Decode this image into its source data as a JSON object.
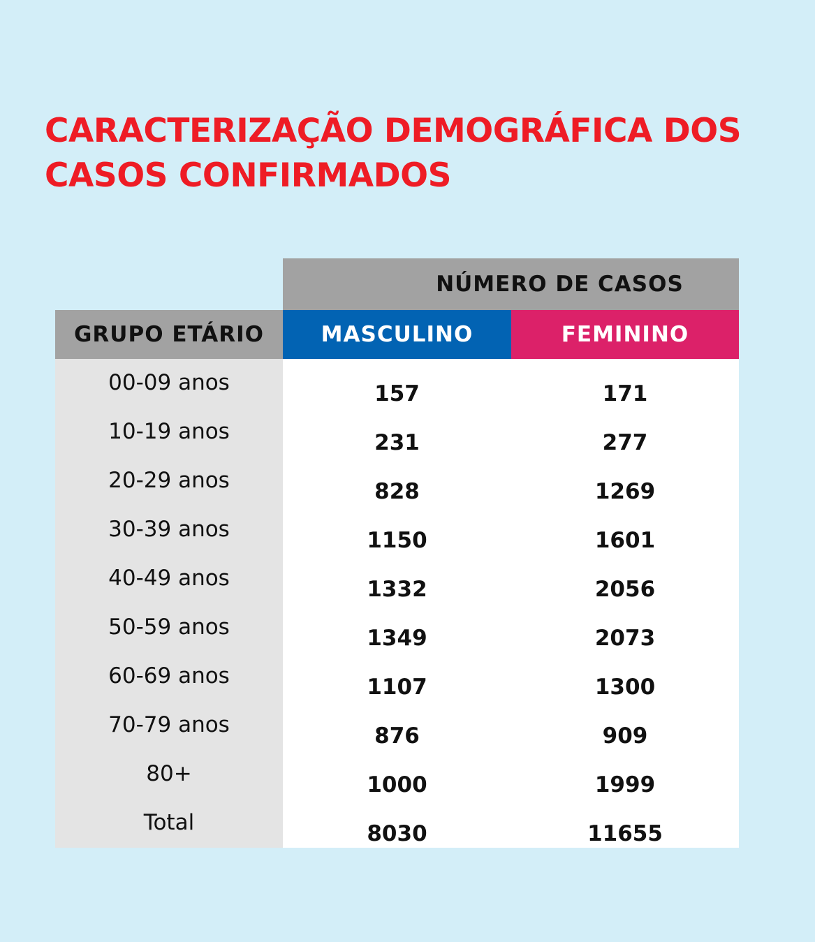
{
  "title": "CARACTERIZAÇÃO DEMOGRÁFICA DOS CASOS CONFIRMADOS",
  "header": {
    "numero_de_casos": "NÚMERO DE CASOS",
    "grupo_etario": "GRUPO ETÁRIO",
    "masculino": "MASCULINO",
    "feminino": "FEMININO"
  },
  "colors": {
    "background": "#d3eef8",
    "title": "#ee1c25",
    "header_gray": "#a2a2a2",
    "masculino": "#0263b3",
    "feminino": "#dc2169",
    "group_column": "#e4e4e4"
  },
  "chart_data": {
    "type": "table",
    "title": "CARACTERIZAÇÃO DEMOGRÁFICA DOS CASOS CONFIRMADOS",
    "columns": [
      "GRUPO ETÁRIO",
      "MASCULINO",
      "FEMININO"
    ],
    "rows": [
      {
        "group": "00-09 anos",
        "masculino": "157",
        "feminino": "171"
      },
      {
        "group": "10-19 anos",
        "masculino": "231",
        "feminino": "277"
      },
      {
        "group": "20-29 anos",
        "masculino": "828",
        "feminino": "1269"
      },
      {
        "group": "30-39 anos",
        "masculino": "1150",
        "feminino": "1601"
      },
      {
        "group": "40-49 anos",
        "masculino": "1332",
        "feminino": "2056"
      },
      {
        "group": "50-59 anos",
        "masculino": "1349",
        "feminino": "2073"
      },
      {
        "group": "60-69 anos",
        "masculino": "1107",
        "feminino": "1300"
      },
      {
        "group": "70-79 anos",
        "masculino": "876",
        "feminino": "909"
      },
      {
        "group": "80+",
        "masculino": "1000",
        "feminino": "1999"
      },
      {
        "group": "Total",
        "masculino": "8030",
        "feminino": "11655"
      }
    ]
  }
}
